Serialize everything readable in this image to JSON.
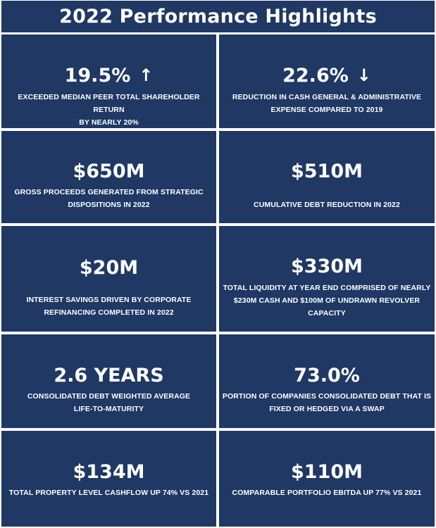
{
  "header": {
    "title": "2022 Performance Highlights"
  },
  "colors": {
    "tile_bg": "#1f3864",
    "text": "#ffffff",
    "gap": "#ffffff"
  },
  "tiles": [
    {
      "value": "19.5%",
      "arrow": "up-arrow-icon",
      "arrow_glyph": "↑",
      "desc_lines": [
        "EXCEEDED MEDIAN PEER TOTAL SHAREHOLDER RETURN",
        "BY NEARLY 20%"
      ]
    },
    {
      "value": "22.6%",
      "arrow": "down-arrow-icon",
      "arrow_glyph": "↓",
      "desc_lines": [
        "REDUCTION IN CASH GENERAL & ADMINISTRATIVE",
        "EXPENSE COMPARED TO 2019"
      ]
    },
    {
      "value": "$650M",
      "desc_lines": [
        "GROSS PROCEEDS GENERATED FROM STRATEGIC",
        "DISPOSITIONS IN 2022"
      ]
    },
    {
      "value": "$510M",
      "desc_lines": [
        "CUMULATIVE DEBT REDUCTION IN 2022"
      ]
    },
    {
      "value": "$20M",
      "desc_lines": [
        "INTEREST SAVINGS DRIVEN BY CORPORATE",
        "REFINANCING COMPLETED IN 2022"
      ]
    },
    {
      "value": "$330M",
      "desc_lines": [
        "TOTAL LIQUIDITY AT YEAR END COMPRISED OF NEARLY",
        "$230M CASH AND $100M OF UNDRAWN REVOLVER",
        "CAPACITY"
      ]
    },
    {
      "value": "2.6 YEARS",
      "desc_lines": [
        "CONSOLIDATED DEBT WEIGHTED AVERAGE",
        "LIFE-TO-MATURITY"
      ]
    },
    {
      "value": "73.0%",
      "desc_lines": [
        "PORTION OF COMPANIES CONSOLIDATED DEBT THAT IS",
        "FIXED OR HEDGED VIA A SWAP"
      ]
    },
    {
      "value": "$134M",
      "desc_lines": [
        "TOTAL PROPERTY LEVEL CASHFLOW UP 74% VS 2021"
      ]
    },
    {
      "value": "$110M",
      "desc_lines": [
        "COMPARABLE PORTFOLIO EBITDA UP 77% VS 2021"
      ]
    }
  ]
}
